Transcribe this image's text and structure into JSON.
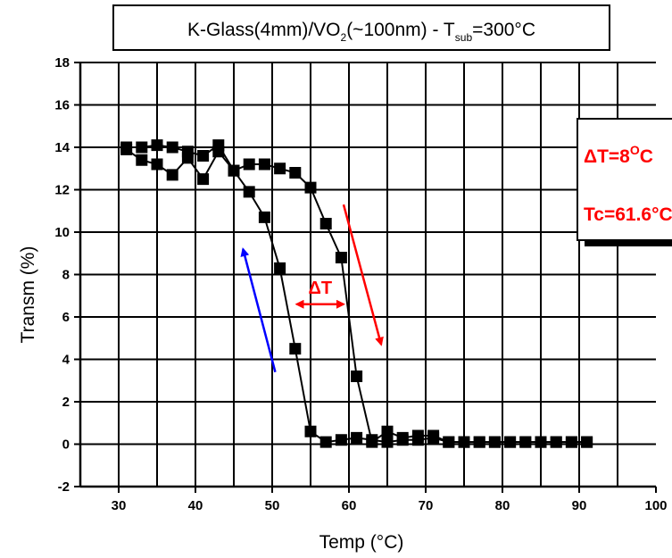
{
  "chart_data": {
    "type": "scatter",
    "title": {
      "prefix": "K-Glass(4mm)/VO",
      "sub1": "2",
      "middle": "(~100nm) - T",
      "sub2": "sub",
      "suffix": "=300°C"
    },
    "xlabel": "Temp (°C)",
    "ylabel": "Transm (%)",
    "xlim": [
      25,
      100
    ],
    "ylim": [
      -2,
      18
    ],
    "x_ticks": [
      30,
      40,
      50,
      60,
      70,
      80,
      90,
      100
    ],
    "y_ticks": [
      -2,
      0,
      2,
      4,
      6,
      8,
      10,
      12,
      14,
      16,
      18
    ],
    "x_grid_step": 5,
    "grid": true,
    "series": [
      {
        "marker": "square",
        "color": "#000000",
        "x": [
          31,
          33,
          35,
          37,
          39,
          41,
          43,
          45,
          47,
          49,
          51,
          53,
          55,
          57,
          59,
          61,
          63,
          65,
          67,
          69,
          71,
          73,
          75,
          77,
          79,
          81,
          83,
          85,
          87,
          89,
          91
        ],
        "y": [
          13.9,
          13.4,
          13.2,
          12.7,
          13.5,
          12.5,
          13.8,
          12.9,
          11.9,
          10.7,
          8.3,
          4.5,
          0.6,
          0.1,
          0.2,
          0.3,
          0.2,
          0.1,
          0.2,
          0.2,
          0.3,
          0.1,
          0.1,
          0.1,
          0.1,
          0.1,
          0.1,
          0.1,
          0.1,
          0.1,
          0.1
        ]
      },
      {
        "marker": "square",
        "color": "#000000",
        "x": [
          31,
          33,
          35,
          37,
          39,
          41,
          43,
          45,
          47,
          49,
          51,
          53,
          55,
          57,
          59,
          61,
          63,
          65,
          67,
          69,
          71,
          73,
          75,
          77,
          79,
          81,
          83,
          85,
          87,
          89,
          91
        ],
        "y": [
          14.0,
          14.0,
          14.1,
          14.0,
          13.8,
          13.6,
          14.1,
          12.9,
          13.2,
          13.2,
          13.0,
          12.8,
          12.1,
          10.4,
          8.8,
          3.2,
          0.1,
          0.6,
          0.3,
          0.4,
          0.4,
          0.1,
          0.1,
          0.1,
          0.1,
          0.1,
          0.1,
          0.1,
          0.1,
          0.1,
          0.1
        ]
      }
    ],
    "annotations": {
      "delta_t_label": "ΔT",
      "delta_t_range": [
        52.5,
        60
      ],
      "delta_t_y": 6.6,
      "box_delta": "ΔT=8",
      "box_delta_unit_sup": "O",
      "box_delta_unit": "C",
      "box_tc": "Tc=61.6°C",
      "arrow_heating": {
        "color": "#ff0000",
        "from": [
          59.3,
          11.3
        ],
        "to": [
          64.2,
          4.7
        ]
      },
      "arrow_cooling": {
        "color": "#0000ff",
        "from": [
          50.4,
          3.4
        ],
        "to": [
          46.2,
          9.2
        ]
      }
    }
  }
}
